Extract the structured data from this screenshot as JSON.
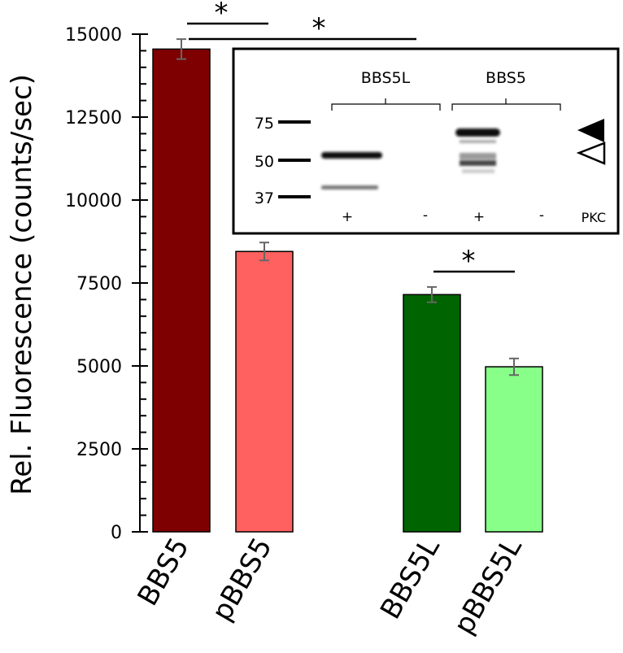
{
  "chart_data": {
    "type": "bar",
    "title": "",
    "xlabel": "",
    "ylabel": "Rel. Fluorescence (counts/sec)",
    "ylim": [
      0,
      15000
    ],
    "yticks": [
      0,
      2500,
      5000,
      7500,
      10000,
      12500,
      15000
    ],
    "categories": [
      "BBS5",
      "pBBS5",
      "BBS5L",
      "pBBS5L"
    ],
    "values": [
      14550,
      8450,
      7150,
      4975
    ],
    "errors": [
      300,
      270,
      230,
      250
    ],
    "colors": [
      "#7f0000",
      "#ff6060",
      "#006400",
      "#88ff88"
    ],
    "grid": false,
    "significance": [
      {
        "from": "BBS5",
        "to": "pBBS5",
        "label": "*"
      },
      {
        "from": "BBS5",
        "to": "BBS5L",
        "label": "*"
      },
      {
        "from": "BBS5L",
        "to": "pBBS5L",
        "label": "*"
      }
    ]
  },
  "inset": {
    "groups": [
      "BBS5L",
      "BBS5"
    ],
    "markers": [
      "75",
      "50",
      "37"
    ],
    "lanes": [
      "+",
      "-",
      "+",
      "-"
    ],
    "treatment_label": "PKC"
  }
}
